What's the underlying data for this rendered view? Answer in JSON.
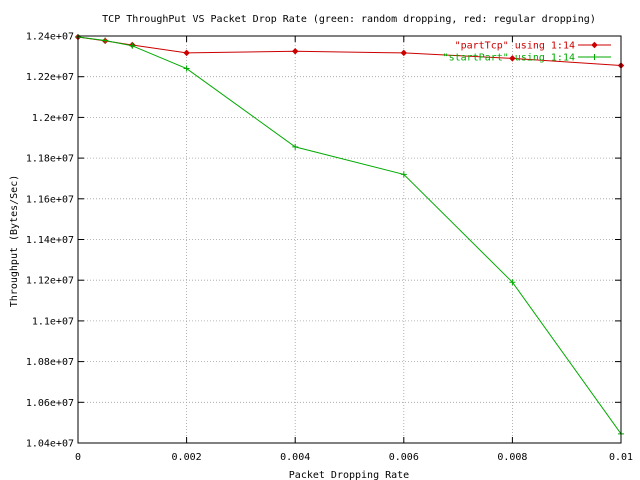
{
  "chart_data": {
    "type": "line",
    "title": "TCP ThroughPut VS Packet Drop Rate (green: random dropping, red: regular dropping)",
    "xlabel": "Packet Dropping Rate",
    "ylabel": "Throughput (Bytes/Sec)",
    "xlim": [
      0,
      0.01
    ],
    "ylim": [
      10400000,
      12400000
    ],
    "xticks": [
      0,
      0.002,
      0.004,
      0.006,
      0.008,
      0.01
    ],
    "xtick_labels": [
      "0",
      "0.002",
      "0.004",
      "0.006",
      "0.008",
      "0.01"
    ],
    "yticks": [
      10400000,
      10600000,
      10800000,
      11000000,
      11200000,
      11400000,
      11600000,
      11800000,
      12000000,
      12200000,
      12400000
    ],
    "ytick_labels": [
      "1.04e+07",
      "1.06e+07",
      "1.08e+07",
      "1.1e+07",
      "1.12e+07",
      "1.14e+07",
      "1.16e+07",
      "1.18e+07",
      "1.2e+07",
      "1.22e+07",
      "1.24e+07"
    ],
    "grid": true,
    "legend_position": "top-right",
    "series": [
      {
        "name": "\"partTcp\" using 1:14",
        "color": "#cc0000",
        "marker": "diamond",
        "x": [
          0,
          0.0005,
          0.001,
          0.002,
          0.004,
          0.006,
          0.008,
          0.01
        ],
        "y": [
          12395000,
          12376000,
          12356000,
          12317000,
          12325000,
          12317000,
          12290000,
          12255000
        ]
      },
      {
        "name": "\"startPart\" using 1:14",
        "color": "#00aa00",
        "marker": "plus",
        "x": [
          0,
          0.0005,
          0.001,
          0.002,
          0.004,
          0.006,
          0.008,
          0.01
        ],
        "y": [
          12395000,
          12378000,
          12352000,
          12240000,
          11855000,
          11720000,
          11190000,
          10445000
        ]
      }
    ]
  }
}
